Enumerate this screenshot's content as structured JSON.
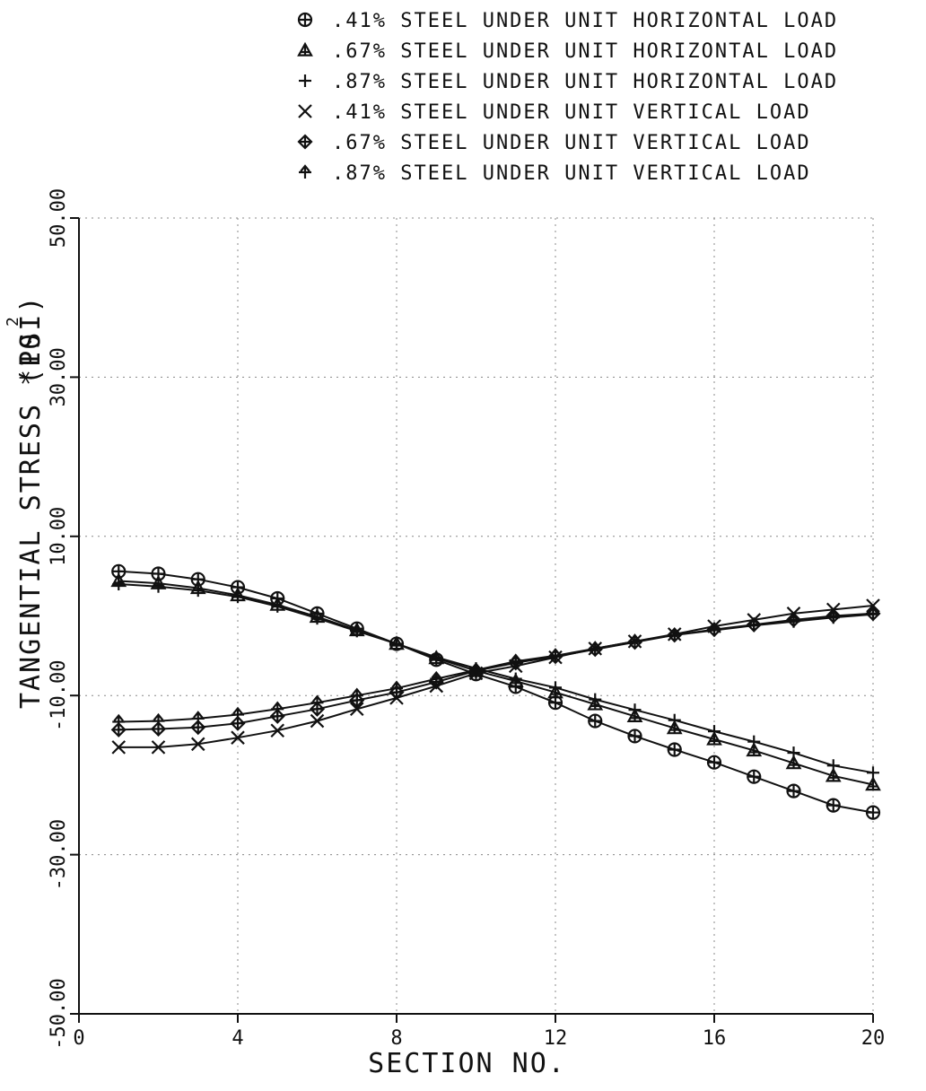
{
  "chart_data": {
    "type": "line",
    "xlabel": "SECTION NO.",
    "ylabel": "TANGENTIAL STRESS (PSI)",
    "ylabel_multiplier": "*10",
    "ylabel_exponent": "2",
    "xlim": [
      0,
      20
    ],
    "ylim": [
      -50,
      50
    ],
    "x_ticks": [
      0,
      4,
      8,
      12,
      16,
      20
    ],
    "x_tick_labels": [
      "0",
      "4",
      "8",
      "12",
      "16",
      "20"
    ],
    "y_ticks": [
      -50,
      -30,
      -10,
      10,
      30,
      50
    ],
    "y_tick_labels": [
      "-50.00",
      "-30.00",
      "-10.00",
      "10.00",
      "30.00",
      "50.00"
    ],
    "grid": true,
    "legend_position": "top-right, above plot",
    "x": [
      1,
      2,
      3,
      4,
      5,
      6,
      7,
      8,
      9,
      10,
      11,
      12,
      13,
      14,
      15,
      16,
      17,
      18,
      19,
      20
    ],
    "series": [
      {
        "name": ".41% STEEL UNDER UNIT HORIZONTAL LOAD",
        "marker": "circle-plus",
        "values": [
          5.6,
          5.3,
          4.6,
          3.6,
          2.2,
          0.3,
          -1.6,
          -3.5,
          -5.5,
          -7.3,
          -8.9,
          -10.9,
          -13.2,
          -15.1,
          -16.8,
          -18.4,
          -20.2,
          -22.0,
          -23.8,
          -24.7
        ]
      },
      {
        "name": ".67% STEEL UNDER UNIT HORIZONTAL LOAD",
        "marker": "triangle",
        "values": [
          4.4,
          4.1,
          3.5,
          2.6,
          1.4,
          -0.1,
          -1.8,
          -3.5,
          -5.3,
          -6.9,
          -8.2,
          -9.6,
          -11.1,
          -12.6,
          -14.1,
          -15.5,
          -16.9,
          -18.5,
          -20.1,
          -21.2
        ]
      },
      {
        "name": ".87% STEEL UNDER UNIT HORIZONTAL LOAD",
        "marker": "plus",
        "values": [
          4.0,
          3.7,
          3.2,
          2.4,
          1.2,
          -0.3,
          -1.9,
          -3.5,
          -5.2,
          -6.6,
          -7.9,
          -9.0,
          -10.5,
          -11.8,
          -13.1,
          -14.5,
          -15.8,
          -17.2,
          -18.8,
          -19.7
        ]
      },
      {
        "name": ".41% STEEL UNDER UNIT VERTICAL LOAD",
        "marker": "x",
        "values": [
          -16.5,
          -16.5,
          -16.1,
          -15.3,
          -14.4,
          -13.2,
          -11.7,
          -10.3,
          -8.8,
          -7.2,
          -6.3,
          -5.2,
          -4.1,
          -3.2,
          -2.3,
          -1.3,
          -0.5,
          0.3,
          0.8,
          1.3
        ]
      },
      {
        "name": ".67% STEEL UNDER UNIT VERTICAL LOAD",
        "marker": "diamond-plus",
        "values": [
          -14.3,
          -14.2,
          -14.0,
          -13.5,
          -12.6,
          -11.7,
          -10.6,
          -9.6,
          -8.3,
          -6.9,
          -5.9,
          -5.1,
          -4.2,
          -3.3,
          -2.4,
          -1.7,
          -1.1,
          -0.5,
          0.0,
          0.3
        ]
      },
      {
        "name": ".87% STEEL UNDER UNIT VERTICAL LOAD",
        "marker": "arrow",
        "values": [
          -13.3,
          -13.2,
          -12.9,
          -12.4,
          -11.7,
          -10.9,
          -10.0,
          -9.1,
          -7.9,
          -6.8,
          -5.7,
          -5.0,
          -4.1,
          -3.2,
          -2.4,
          -1.8,
          -1.2,
          -0.7,
          -0.2,
          0.2
        ]
      }
    ]
  }
}
